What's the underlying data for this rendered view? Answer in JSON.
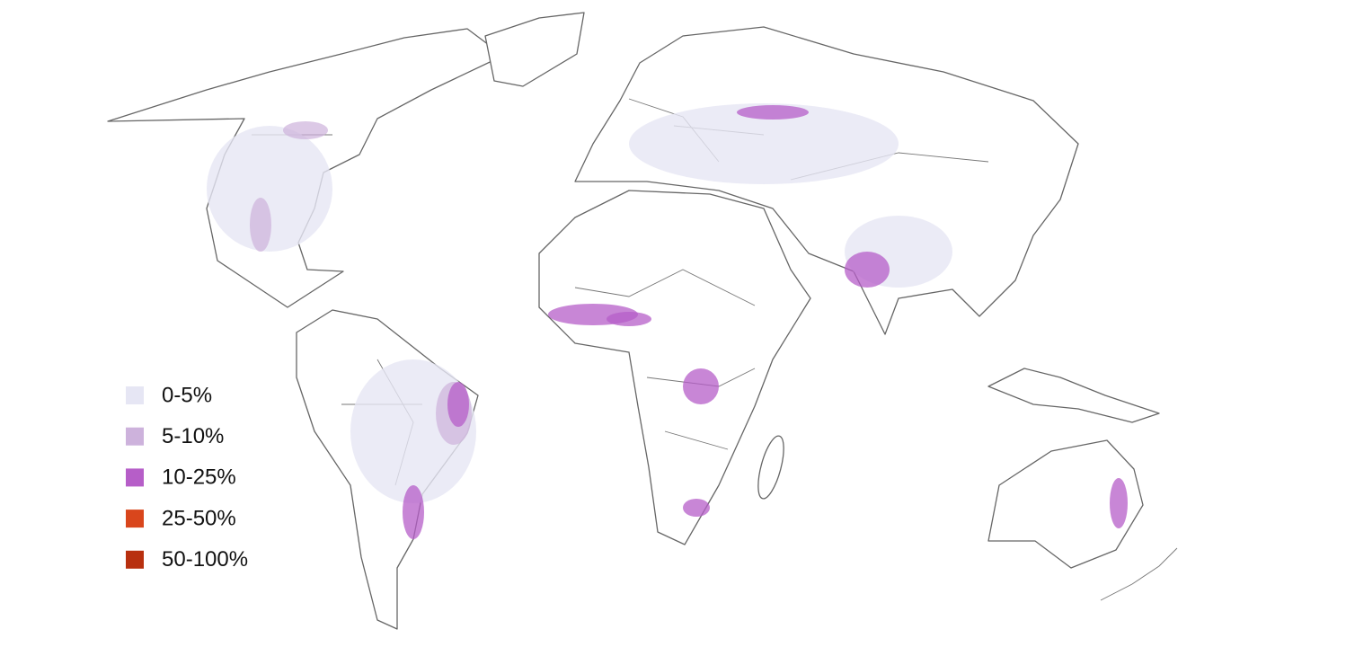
{
  "legend": {
    "items": [
      {
        "label": "0-5%",
        "color": "#e6e6f4"
      },
      {
        "label": "5-10%",
        "color": "#cdb2dc"
      },
      {
        "label": "10-25%",
        "color": "#b65ec8"
      },
      {
        "label": "25-50%",
        "color": "#d9461c"
      },
      {
        "label": "50-100%",
        "color": "#b8300f"
      }
    ]
  }
}
